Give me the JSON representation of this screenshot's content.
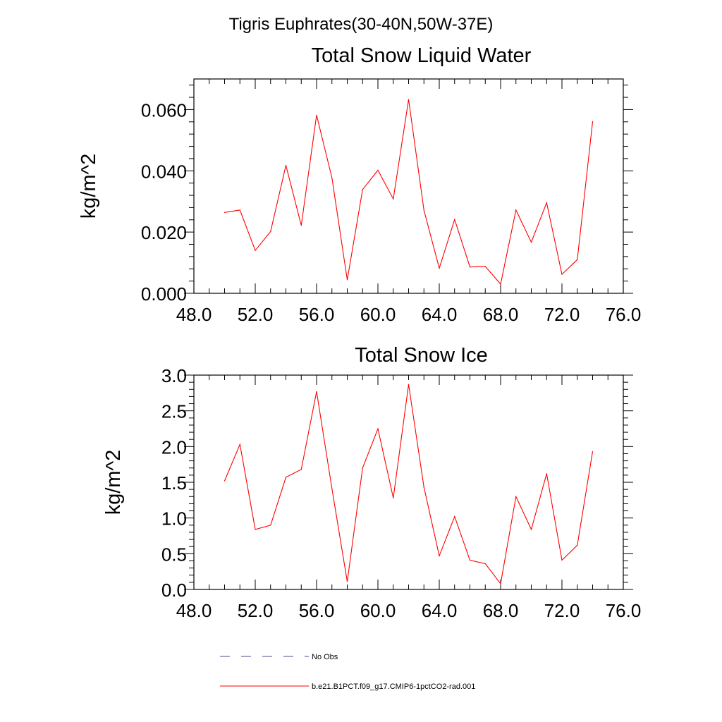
{
  "figure_title": "Tigris Euphrates(30-40N,50W-37E)",
  "legend": [
    {
      "label": "No Obs",
      "color": "#4a4a8a",
      "style": "dashed"
    },
    {
      "label": "b.e21.B1PCT.f09_g17.CMIP6-1pctCO2-rad.001",
      "color": "#ff0000",
      "style": "solid"
    }
  ],
  "chart_data": [
    {
      "type": "line",
      "title": "Total Snow Liquid Water",
      "xlabel": "",
      "ylabel": "kg/m^2",
      "xlim": [
        48,
        76
      ],
      "ylim": [
        0,
        0.07
      ],
      "xticks": [
        48,
        52,
        56,
        60,
        64,
        68,
        72,
        76
      ],
      "xtick_labels": [
        "48.0",
        "52.0",
        "56.0",
        "60.0",
        "64.0",
        "68.0",
        "72.0",
        "76.0"
      ],
      "yticks": [
        0,
        0.02,
        0.04,
        0.06
      ],
      "ytick_labels": [
        "0.000",
        "0.020",
        "0.040",
        "0.060"
      ],
      "grid": false,
      "series": [
        {
          "name": "b.e21.B1PCT.f09_g17.CMIP6-1pctCO2-rad.001",
          "color": "#ff0000",
          "x": [
            50,
            51,
            52,
            53,
            54,
            55,
            56,
            57,
            58,
            59,
            60,
            61,
            62,
            63,
            64,
            65,
            66,
            67,
            68,
            69,
            70,
            71,
            72,
            73,
            74
          ],
          "values": [
            0.0264,
            0.0272,
            0.014,
            0.0202,
            0.0418,
            0.0222,
            0.0582,
            0.0377,
            0.0044,
            0.0339,
            0.0402,
            0.0308,
            0.0633,
            0.0271,
            0.0082,
            0.0241,
            0.0086,
            0.0088,
            0.003,
            0.0272,
            0.0167,
            0.0296,
            0.0062,
            0.011,
            0.0561
          ]
        }
      ]
    },
    {
      "type": "line",
      "title": "Total Snow Ice",
      "xlabel": "",
      "ylabel": "kg/m^2",
      "xlim": [
        48,
        76
      ],
      "ylim": [
        0,
        3.0
      ],
      "xticks": [
        48,
        52,
        56,
        60,
        64,
        68,
        72,
        76
      ],
      "xtick_labels": [
        "48.0",
        "52.0",
        "56.0",
        "60.0",
        "64.0",
        "68.0",
        "72.0",
        "76.0"
      ],
      "yticks": [
        0,
        0.5,
        1.0,
        1.5,
        2.0,
        2.5,
        3.0
      ],
      "ytick_labels": [
        "0.0",
        "0.5",
        "1.0",
        "1.5",
        "2.0",
        "2.5",
        "3.0"
      ],
      "grid": false,
      "series": [
        {
          "name": "b.e21.B1PCT.f09_g17.CMIP6-1pctCO2-rad.001",
          "color": "#ff0000",
          "x": [
            50,
            51,
            52,
            53,
            54,
            55,
            56,
            57,
            58,
            59,
            60,
            61,
            62,
            63,
            64,
            65,
            66,
            67,
            68,
            69,
            70,
            71,
            72,
            73,
            74
          ],
          "values": [
            1.52,
            2.03,
            0.84,
            0.9,
            1.57,
            1.68,
            2.77,
            1.41,
            0.11,
            1.7,
            2.25,
            1.28,
            2.87,
            1.43,
            0.47,
            1.02,
            0.41,
            0.36,
            0.08,
            1.3,
            0.84,
            1.62,
            0.41,
            0.62,
            1.93
          ]
        }
      ]
    }
  ]
}
